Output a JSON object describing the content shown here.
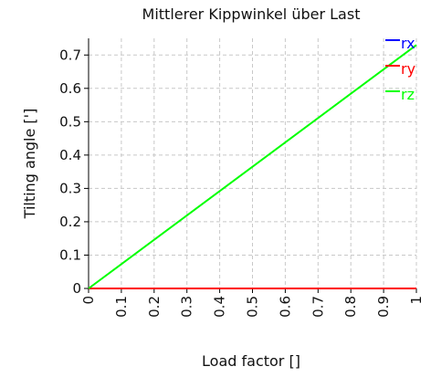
{
  "chart_data": {
    "type": "line",
    "title": "Mittlerer Kippwinkel über Last",
    "xlabel": "Load factor []",
    "ylabel": "Tilting angle [']",
    "xlim": [
      0,
      1
    ],
    "ylim": [
      0,
      0.75
    ],
    "xticks": [
      "0",
      "0.1",
      "0.2",
      "0.3",
      "0.4",
      "0.5",
      "0.6",
      "0.7",
      "0.8",
      "0.9",
      "1"
    ],
    "yticks": [
      "0",
      "0.1",
      "0.2",
      "0.3",
      "0.4",
      "0.5",
      "0.6",
      "0.7"
    ],
    "grid": true,
    "legend_position": "top-right",
    "series": [
      {
        "name": "rx",
        "color": "#0000ff",
        "x": [
          0,
          1
        ],
        "y": [
          0,
          0
        ]
      },
      {
        "name": "ry",
        "color": "#ff0000",
        "x": [
          0,
          1
        ],
        "y": [
          0,
          0
        ]
      },
      {
        "name": "rz",
        "color": "#00ff00",
        "x": [
          0,
          1
        ],
        "y": [
          0,
          0.73
        ]
      }
    ]
  }
}
